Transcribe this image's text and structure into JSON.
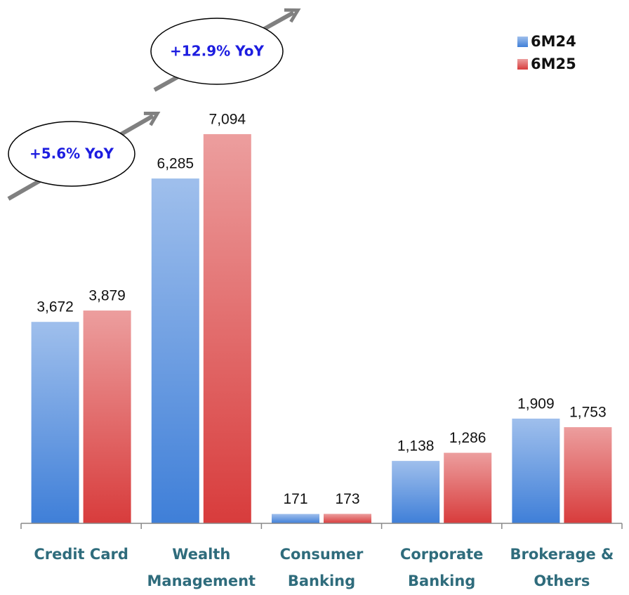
{
  "chart_data": {
    "type": "bar",
    "categories": [
      "Credit Card",
      "Wealth Management",
      "Consumer Banking",
      "Corporate Banking",
      "Brokerage & Others"
    ],
    "series": [
      {
        "name": "6M24",
        "color": "#3f7fd8",
        "values": [
          3672,
          6285,
          171,
          1138,
          1909
        ],
        "value_labels": [
          "3,672",
          "6,285",
          "171",
          "1,138",
          "1,909"
        ]
      },
      {
        "name": "6M25",
        "color": "#d83c3c",
        "values": [
          3879,
          7094,
          173,
          1286,
          1753
        ],
        "value_labels": [
          "3,879",
          "7,094",
          "173",
          "1,286",
          "1,753"
        ]
      }
    ],
    "annotations": [
      "+5.6% YoY",
      "+12.9% YoY"
    ],
    "ylim": [
      0,
      9500
    ],
    "legend": "top-right"
  }
}
